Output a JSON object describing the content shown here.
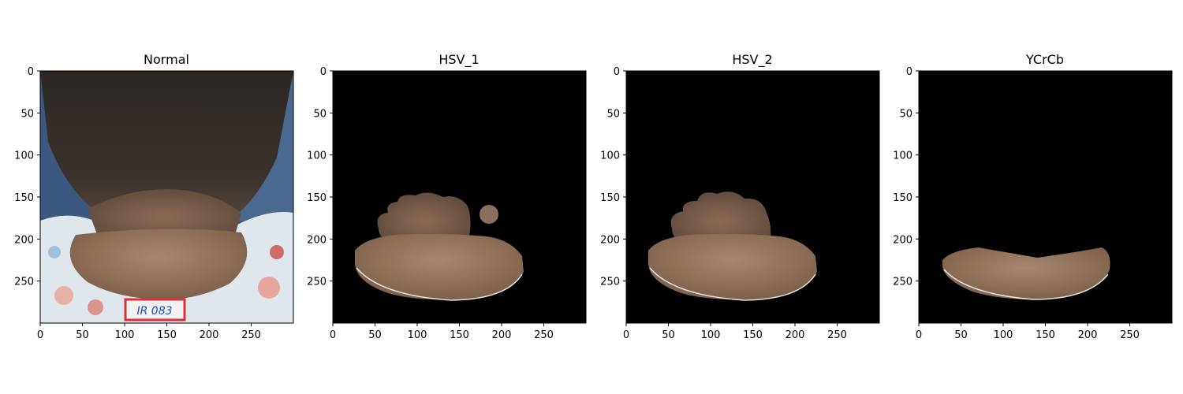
{
  "figure": {
    "panels": [
      {
        "title": "Normal",
        "content": "original-photo"
      },
      {
        "title": "HSV_1",
        "content": "mask-hsv1"
      },
      {
        "title": "HSV_2",
        "content": "mask-hsv2"
      },
      {
        "title": "YCrCb",
        "content": "mask-ycrcb"
      }
    ],
    "x_ticks": [
      "0",
      "50",
      "100",
      "150",
      "200",
      "250"
    ],
    "y_ticks": [
      "0",
      "50",
      "100",
      "150",
      "200",
      "250"
    ],
    "axis_range": {
      "x": [
        0,
        300
      ],
      "y": [
        0,
        300
      ]
    },
    "photo_label_text": "IR 083",
    "colors": {
      "background_mask": "#000000",
      "skin_tone": "#9a7a62",
      "hair": "#2a2623",
      "photo_backdrop": "#3d5880",
      "shirt": "#dfe6ec",
      "label_border": "#d8313a",
      "label_ink": "#1f50c8"
    }
  }
}
